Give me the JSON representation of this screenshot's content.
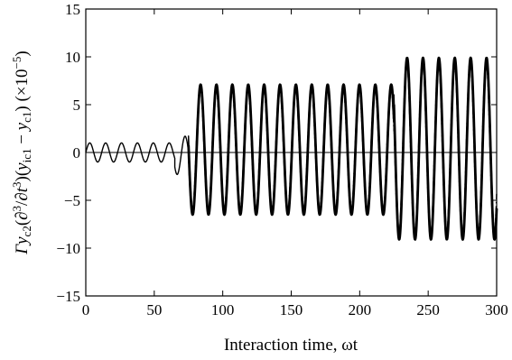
{
  "chart_data": {
    "type": "line",
    "title": "",
    "xlabel": "Interaction time, ωt",
    "ylabel_parts": {
      "gamma": "Γ",
      "y1": "y",
      "sub_c2": "c2",
      "mid": "(∂",
      "sup3a": "3",
      "mid2": "/∂",
      "t": "t",
      "sup3b": "3",
      "mid3": ")(",
      "y2": "y",
      "sub_ic1": "ic1",
      "minus": " − ",
      "y3": "y",
      "sub_c1": "c1",
      "mid4": ") (×10",
      "sup_exp": "−5",
      "end": ")"
    },
    "xlim": [
      0,
      300
    ],
    "ylim": [
      -15,
      15
    ],
    "x_ticks": [
      0,
      50,
      100,
      150,
      200,
      250,
      300
    ],
    "y_ticks": [
      -15,
      -10,
      -5,
      0,
      5,
      10,
      15
    ],
    "x_tick_labels": [
      "0",
      "50",
      "100",
      "150",
      "200",
      "250",
      "300"
    ],
    "y_tick_labels": [
      "−15",
      "−10",
      "−5",
      "0",
      "5",
      "10",
      "15"
    ],
    "zero_line": true,
    "grid": false,
    "legend": "none",
    "series": [
      {
        "style": "solid-thin",
        "description_segments": [
          {
            "x_start": 0,
            "x_end": 65,
            "amplitude": 1.0,
            "center": 0,
            "period": 11.6
          },
          {
            "x_start": 65,
            "x_end": 75,
            "amplitude": 2.0,
            "center": -0.3,
            "period": 11.6
          },
          {
            "x_start": 75,
            "x_end": 225,
            "amplitude": 6.6,
            "center": 0.3,
            "period": 11.6
          },
          {
            "x_start": 225,
            "x_end": 300,
            "amplitude": 9.3,
            "center": 0.4,
            "period": 11.6
          }
        ]
      },
      {
        "style": "dash-dot",
        "description_segments": [
          {
            "x_start": 75,
            "x_end": 225,
            "amplitude": 6.6,
            "center": 0.3,
            "period": 11.6
          },
          {
            "x_start": 225,
            "x_end": 300,
            "amplitude": 9.3,
            "center": 0.4,
            "period": 11.6
          }
        ]
      },
      {
        "style": "solid-thick",
        "description_segments": [
          {
            "x_start": 75,
            "x_end": 225,
            "amplitude": 6.8,
            "center": 0.3,
            "period": 11.6
          },
          {
            "x_start": 225,
            "x_end": 300,
            "amplitude": 9.5,
            "center": 0.4,
            "period": 11.6
          }
        ]
      }
    ]
  }
}
